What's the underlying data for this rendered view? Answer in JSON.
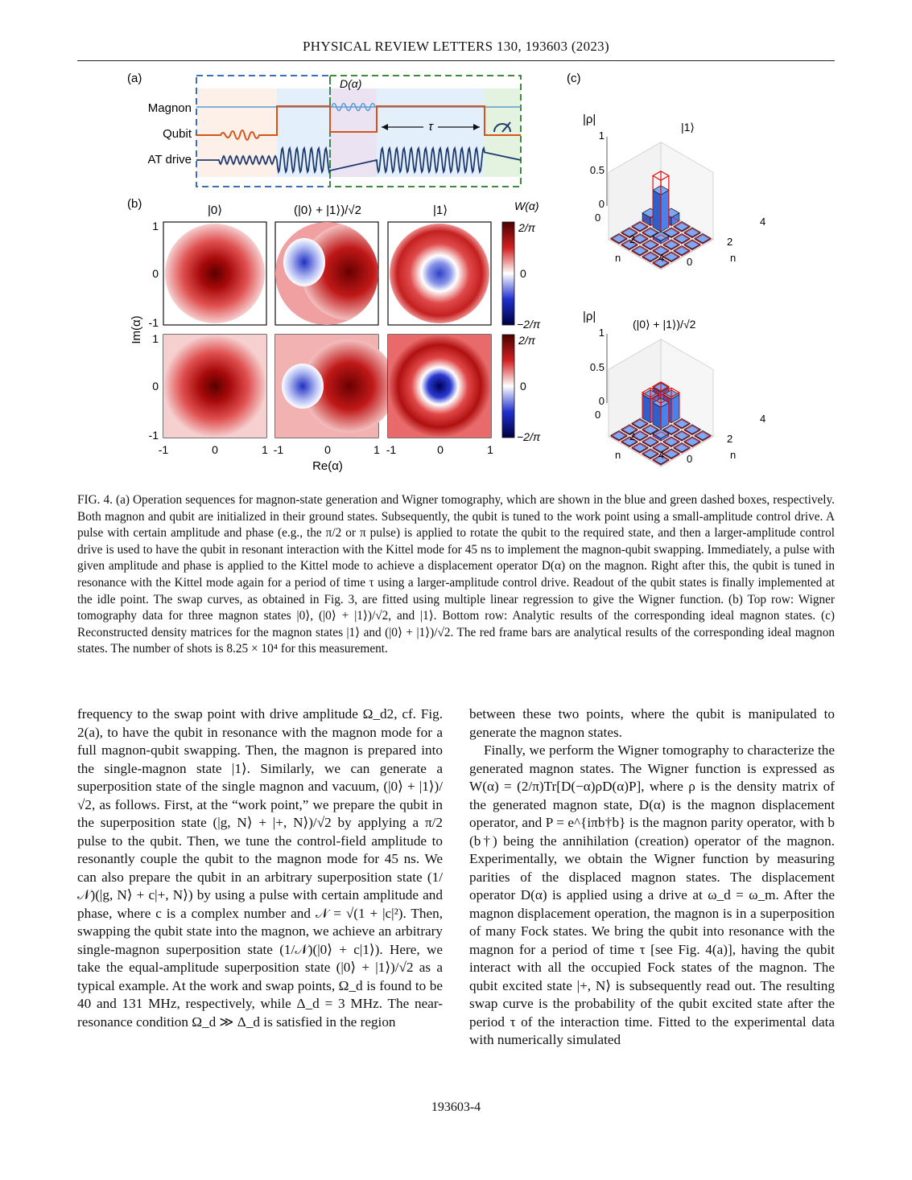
{
  "header": {
    "running_head": "PHYSICAL REVIEW LETTERS 130, 193603 (2023)"
  },
  "figure": {
    "panel_a": {
      "label": "(a)",
      "rows": [
        "Magnon",
        "Qubit",
        "AT drive"
      ],
      "displacement_label": "D(α)",
      "tau_label": "τ"
    },
    "panel_b": {
      "label": "(b)",
      "column_titles": [
        "|0⟩",
        "(|0⟩ + |1⟩)/√2",
        "|1⟩"
      ],
      "colorbar_title": "W(α)",
      "colorbar_ticks": [
        "2/π",
        "0",
        "−2/π"
      ],
      "ylabel": "Im(α)",
      "xlabel": "Re(α)",
      "x_ticks": [
        "-1",
        "0",
        "1"
      ],
      "y_ticks": [
        "1",
        "0",
        "-1"
      ]
    },
    "panel_c": {
      "label": "(c)",
      "zlabel": "|ρ|",
      "z_ticks": [
        "1",
        "0.5",
        "0"
      ],
      "axis_label": "n",
      "axis_ticks": [
        "0",
        "2",
        "4"
      ],
      "plots": [
        {
          "state": "|1⟩"
        },
        {
          "state": "(|0⟩ + |1⟩)/√2"
        }
      ]
    }
  },
  "caption": "FIG. 4. (a) Operation sequences for magnon-state generation and Wigner tomography, which are shown in the blue and green dashed boxes, respectively. Both magnon and qubit are initialized in their ground states. Subsequently, the qubit is tuned to the work point using a small-amplitude control drive. A pulse with certain amplitude and phase (e.g., the π/2 or π pulse) is applied to rotate the qubit to the required state, and then a larger-amplitude control drive is used to have the qubit in resonant interaction with the Kittel mode for 45 ns to implement the magnon-qubit swapping. Immediately, a pulse with given amplitude and phase is applied to the Kittel mode to achieve a displacement operator D(α) on the magnon. Right after this, the qubit is tuned in resonance with the Kittel mode again for a period of time τ using a larger-amplitude control drive. Readout of the qubit states is finally implemented at the idle point. The swap curves, as obtained in Fig. 3, are fitted using multiple linear regression to give the Wigner function. (b) Top row: Wigner tomography data for three magnon states |0⟩, (|0⟩ + |1⟩)/√2, and |1⟩. Bottom row: Analytic results of the corresponding ideal magnon states. (c) Reconstructed density matrices for the magnon states |1⟩ and (|0⟩ + |1⟩)/√2. The red frame bars are analytical results of the corresponding ideal magnon states. The number of shots is 8.25 × 10⁴ for this measurement.",
  "body": {
    "left": [
      "frequency to the swap point with drive amplitude Ω_d2, cf. Fig. 2(a), to have the qubit in resonance with the magnon mode for a full magnon-qubit swapping. Then, the magnon is prepared into the single-magnon state |1⟩. Similarly, we can generate a superposition state of the single magnon and vacuum, (|0⟩ + |1⟩)/√2, as follows. First, at the “work point,” we prepare the qubit in the superposition state (|g, N⟩ + |+, N⟩)/√2 by applying a π/2 pulse to the qubit. Then, we tune the control-field amplitude to resonantly couple the qubit to the magnon mode for 45 ns. We can also prepare the qubit in an arbitrary superposition state (1/𝒩)(|g, N⟩ + c|+, N⟩) by using a pulse with certain amplitude and phase, where c is a complex number and 𝒩 = √(1 + |c|²). Then, swapping the qubit state into the magnon, we achieve an arbitrary single-magnon superposition state (1/𝒩)(|0⟩ + c|1⟩). Here, we take the equal-amplitude superposition state (|0⟩ + |1⟩)/√2 as a typical example. At the work and swap points, Ω_d is found to be 40 and 131 MHz, respectively, while Δ_d = 3 MHz. The near-resonance condition Ω_d ≫ Δ_d is satisfied in the region"
    ],
    "right": [
      "between these two points, where the qubit is manipulated to generate the magnon states.",
      "Finally, we perform the Wigner tomography to characterize the generated magnon states. The Wigner function is expressed as W(α) = (2/π)Tr[D(−α)ρD(α)P], where ρ is the density matrix of the generated magnon state, D(α) is the magnon displacement operator, and P = e^{iπb†b} is the magnon parity operator, with b (b†) being the annihilation (creation) operator of the magnon. Experimentally, we obtain the Wigner function by measuring parities of the displaced magnon states. The displacement operator D(α) is applied using a drive at ω_d = ω_m. After the magnon displacement operation, the magnon is in a superposition of many Fock states. We bring the qubit into resonance with the magnon for a period of time τ [see Fig. 4(a)], having the qubit interact with all the occupied Fock states of the magnon. The qubit excited state |+, N⟩ is subsequently read out. The resulting swap curve is the probability of the qubit excited state after the period τ of the interaction time. Fitted to the experimental data with numerically simulated"
    ]
  },
  "footer": {
    "page_number": "193603-4"
  }
}
